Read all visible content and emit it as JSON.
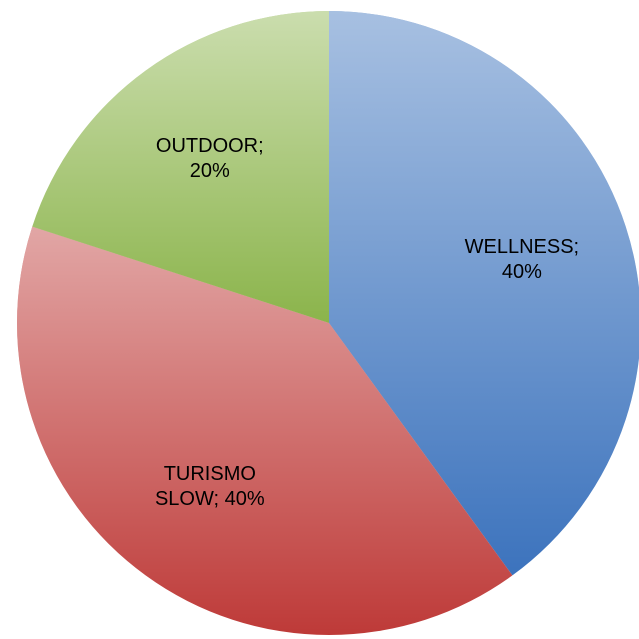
{
  "chart_data": {
    "type": "pie",
    "categories": [
      "WELLNESS",
      "TURISMO SLOW",
      "OUTDOOR"
    ],
    "values": [
      40,
      40,
      20
    ],
    "value_labels": [
      "WELLNESS; 40%",
      "TURISMO SLOW; 40%",
      "OUTDOOR; 20%"
    ],
    "colors": [
      "#3c73bd",
      "#be3a38",
      "#8bb44b"
    ]
  }
}
